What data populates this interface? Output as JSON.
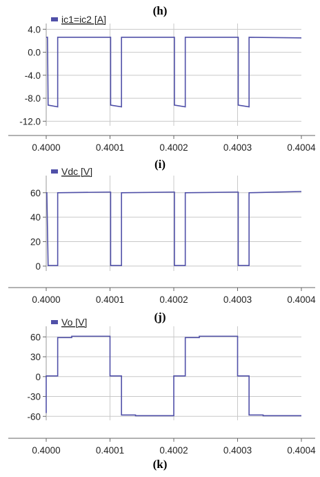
{
  "chart_data": [
    {
      "type": "line",
      "title": "",
      "xlabel": "",
      "ylabel": "",
      "legend": [
        "ic1=ic2 [A]"
      ],
      "legend_placement": "top-left",
      "grid": true,
      "xlim": [
        0.4,
        0.4004
      ],
      "ylim": [
        -12.8,
        5.0
      ],
      "yticks": [
        "4.0",
        "0.0",
        "-4.0",
        "-8.0",
        "-12.0"
      ],
      "xticks": [
        "0.4000",
        "0.4001",
        "0.4002",
        "0.4003",
        "0.4004"
      ],
      "color": "#5050a8",
      "series": [
        {
          "name": "ic1=ic2 [A]",
          "x": [
            0.4,
            0.400002,
            0.400003,
            0.400018,
            0.400018,
            0.400098,
            0.400101,
            0.400101,
            0.400118,
            0.400118,
            0.400198,
            0.400201,
            0.400201,
            0.400218,
            0.400218,
            0.400298,
            0.400301,
            0.400301,
            0.400318,
            0.400318,
            0.4004
          ],
          "y": [
            2.6,
            2.6,
            -9.2,
            -9.5,
            2.6,
            2.6,
            2.6,
            -9.2,
            -9.5,
            2.6,
            2.6,
            2.6,
            -9.2,
            -9.5,
            2.6,
            2.6,
            2.6,
            -9.2,
            -9.5,
            2.6,
            2.5
          ]
        }
      ]
    },
    {
      "type": "line",
      "title": "",
      "xlabel": "",
      "ylabel": "",
      "legend": [
        "Vdc [V]"
      ],
      "legend_placement": "top-left",
      "grid": true,
      "xlim": [
        0.4,
        0.4004
      ],
      "ylim": [
        -4,
        74
      ],
      "yticks": [
        "60",
        "40",
        "20",
        "0"
      ],
      "xticks": [
        "0.4000",
        "0.4001",
        "0.4002",
        "0.4003",
        "0.4004"
      ],
      "color": "#5050a8",
      "series": [
        {
          "name": "Vdc [V]",
          "x": [
            0.4,
            0.400001,
            0.400003,
            0.400018,
            0.400018,
            0.400098,
            0.400101,
            0.400101,
            0.400118,
            0.400118,
            0.400198,
            0.400201,
            0.400201,
            0.400218,
            0.400218,
            0.400298,
            0.400301,
            0.400301,
            0.400318,
            0.400318,
            0.4004
          ],
          "y": [
            60,
            60,
            0.5,
            0.5,
            60,
            60.5,
            60.5,
            0.5,
            0.5,
            60,
            60.5,
            60.5,
            0.5,
            0.5,
            60,
            60.5,
            60.5,
            0.5,
            0.5,
            60,
            61
          ]
        }
      ]
    },
    {
      "type": "line",
      "title": "",
      "xlabel": "",
      "ylabel": "",
      "legend": [
        "Vo [V]"
      ],
      "legend_placement": "top-left",
      "grid": true,
      "xlim": [
        0.4,
        0.4004
      ],
      "ylim": [
        -66,
        76
      ],
      "yticks": [
        "60",
        "30",
        "0",
        "-30",
        "-60"
      ],
      "xticks": [
        "0.4000",
        "0.4001",
        "0.4002",
        "0.4003",
        "0.4004"
      ],
      "color": "#5050a8",
      "series": [
        {
          "name": "Vo [V]",
          "x": [
            0.4,
            0.4,
            0.4,
            0.400018,
            0.400018,
            0.40004,
            0.40004,
            0.4001,
            0.4001,
            0.400118,
            0.400118,
            0.40014,
            0.40014,
            0.4002,
            0.4002,
            0.400218,
            0.400218,
            0.40024,
            0.40024,
            0.4003,
            0.4003,
            0.400318,
            0.400318,
            0.40034,
            0.40034,
            0.4004
          ],
          "y": [
            -55,
            0,
            1,
            1,
            59,
            59,
            61,
            61,
            1,
            1,
            -58,
            -58,
            -59,
            -59,
            1,
            1,
            59,
            59,
            61,
            61,
            1,
            1,
            -58,
            -58,
            -59,
            -59
          ]
        }
      ]
    }
  ],
  "captions": [
    "(h)",
    "(i)",
    "(j)",
    "(k)"
  ]
}
